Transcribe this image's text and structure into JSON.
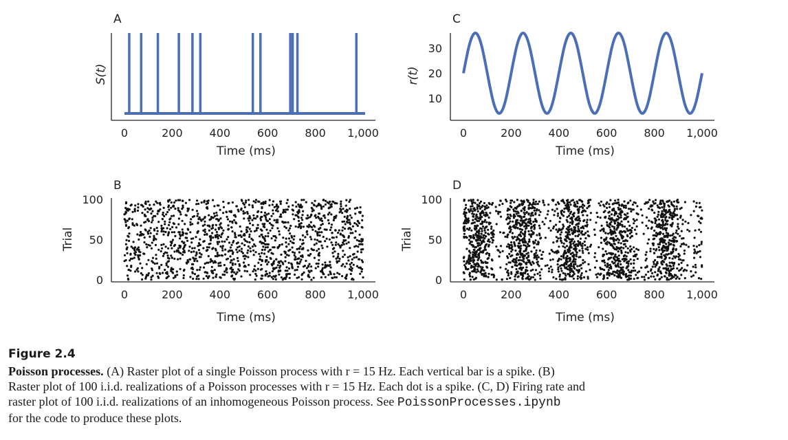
{
  "figure": {
    "panels": {
      "A": {
        "label": "A",
        "ylabel": "S(t)",
        "xlabel": "Time (ms)"
      },
      "B": {
        "label": "B",
        "ylabel": "Trial",
        "xlabel": "Time (ms)"
      },
      "C": {
        "label": "C",
        "ylabel": "r(t)",
        "xlabel": "Time (ms)"
      },
      "D": {
        "label": "D",
        "ylabel": "Trial",
        "xlabel": "Time (ms)"
      }
    }
  },
  "chart_data": [
    {
      "panel": "A",
      "type": "line",
      "title": "",
      "xlabel": "Time (ms)",
      "ylabel": "S(t)",
      "xlim": [
        0,
        1000
      ],
      "xticks": [
        "0",
        "200",
        "400",
        "600",
        "800",
        "1,000"
      ],
      "spike_times": [
        20,
        70,
        140,
        228,
        285,
        318,
        538,
        570,
        695,
        705,
        725,
        972
      ],
      "color": "#4a6fb5"
    },
    {
      "panel": "B",
      "type": "scatter",
      "title": "",
      "xlabel": "Time (ms)",
      "ylabel": "Trial",
      "xlim": [
        0,
        1000
      ],
      "ylim": [
        0,
        100
      ],
      "xticks": [
        "0",
        "200",
        "400",
        "600",
        "800",
        "1,000"
      ],
      "yticks": [
        "0",
        "50",
        "100"
      ],
      "process": "homogeneous Poisson",
      "rate_hz": 15,
      "trials": 100,
      "color": "#111111"
    },
    {
      "panel": "C",
      "type": "line",
      "title": "",
      "xlabel": "Time (ms)",
      "ylabel": "r(t)",
      "xlim": [
        0,
        1000
      ],
      "ylim": [
        4,
        36
      ],
      "xticks": [
        "0",
        "200",
        "400",
        "600",
        "800",
        "1,000"
      ],
      "yticks": [
        "10",
        "20",
        "30"
      ],
      "function": "r(t) = 20 + 16 sin(2π t / 200)",
      "mean": 20,
      "amplitude": 16,
      "period_ms": 200,
      "color": "#4a6fb5"
    },
    {
      "panel": "D",
      "type": "scatter",
      "title": "",
      "xlabel": "Time (ms)",
      "ylabel": "Trial",
      "xlim": [
        0,
        1000
      ],
      "ylim": [
        0,
        100
      ],
      "xticks": [
        "0",
        "200",
        "400",
        "600",
        "800",
        "1,000"
      ],
      "yticks": [
        "0",
        "50",
        "100"
      ],
      "process": "inhomogeneous Poisson with rate r(t) from C",
      "trials": 100,
      "color": "#111111"
    }
  ],
  "caption": {
    "heading": "Figure 2.4",
    "title": "Poisson processes.",
    "line1_rest": " (A) Raster plot of a single Poisson process with r = 15 Hz. Each vertical bar is a spike. (B)",
    "line2": "Raster plot of 100 i.i.d. realizations of a Poisson processes with r = 15 Hz. Each dot is a spike. (C, D) Firing rate and",
    "line3_pre": "raster plot of 100 i.i.d. realizations of an inhomogeneous Poisson process. See ",
    "notebook": "PoissonProcesses.ipynb",
    "line4": "for the code to produce these plots."
  }
}
